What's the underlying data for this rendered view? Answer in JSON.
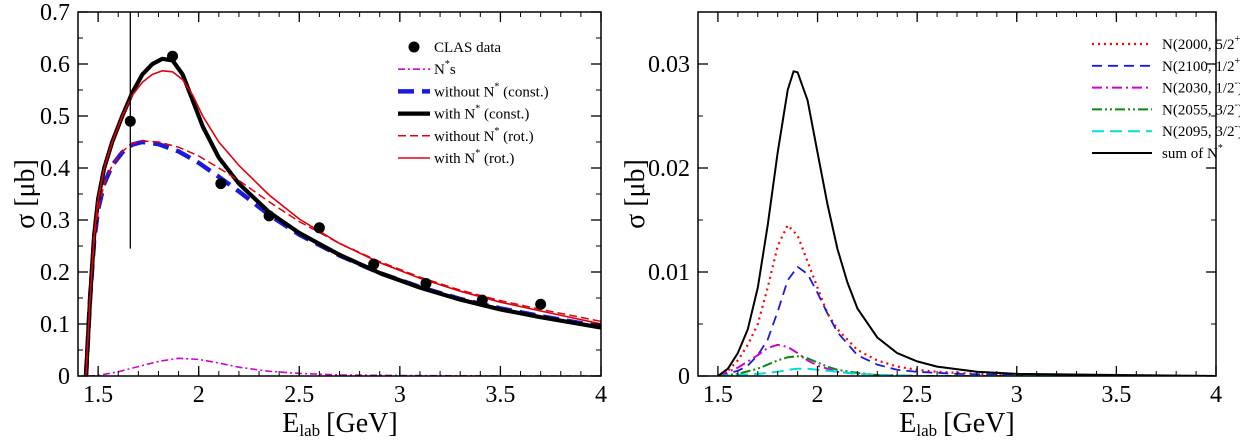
{
  "chart_data": [
    {
      "type": "line",
      "title": "",
      "xlabel": "E",
      "xlabel_sub": "lab",
      "xlabel_unit": "[GeV]",
      "ylabel": "σ [μb]",
      "xlim": [
        1.4,
        4.0
      ],
      "ylim": [
        0,
        0.7
      ],
      "xticks": [
        1.5,
        2,
        2.5,
        3,
        3.5,
        4
      ],
      "xtick_labels": [
        "1.5",
        "2",
        "2.5",
        "3",
        "3.5",
        "4"
      ],
      "yticks": [
        0,
        0.1,
        0.2,
        0.3,
        0.4,
        0.5,
        0.6,
        0.7
      ],
      "ytick_labels": [
        "0",
        "0.1",
        "0.2",
        "0.3",
        "0.4",
        "0.5",
        "0.6",
        "0.7"
      ],
      "legend_position": "top-right",
      "vertical_marker_x": 1.66,
      "vertical_marker_range": [
        0.245,
        0.7
      ],
      "scatter": {
        "name": "CLAS data",
        "color": "#000000",
        "x": [
          1.66,
          1.87,
          2.11,
          2.35,
          2.6,
          2.87,
          3.13,
          3.41,
          3.7
        ],
        "y": [
          0.49,
          0.615,
          0.37,
          0.308,
          0.285,
          0.215,
          0.178,
          0.146,
          0.138
        ]
      },
      "series": [
        {
          "name": "N",
          "name_sup": "*",
          "name_tail": "s",
          "color": "#d000d0",
          "width": 1.6,
          "dash": "7,3,2,3",
          "x": [
            1.45,
            1.5,
            1.6,
            1.7,
            1.8,
            1.9,
            2.0,
            2.1,
            2.2,
            2.35,
            2.5,
            2.7,
            3.0,
            3.5,
            4.0
          ],
          "y": [
            0.0,
            0.001,
            0.008,
            0.018,
            0.028,
            0.034,
            0.032,
            0.025,
            0.017,
            0.009,
            0.005,
            0.002,
            0.001,
            0.0,
            0.0
          ]
        },
        {
          "name": "without N",
          "name_sup": "*",
          "name_tail": " (const.)",
          "color": "#1a1adf",
          "width": 4.5,
          "dash": "16,8",
          "x": [
            1.44,
            1.46,
            1.48,
            1.5,
            1.53,
            1.57,
            1.62,
            1.67,
            1.72,
            1.8,
            1.9,
            2.0,
            2.1,
            2.2,
            2.35,
            2.5,
            2.7,
            2.9,
            3.1,
            3.3,
            3.5,
            3.7,
            4.0
          ],
          "y": [
            0.0,
            0.15,
            0.26,
            0.32,
            0.37,
            0.405,
            0.43,
            0.445,
            0.45,
            0.446,
            0.432,
            0.41,
            0.383,
            0.355,
            0.31,
            0.272,
            0.232,
            0.198,
            0.171,
            0.148,
            0.13,
            0.115,
            0.095
          ]
        },
        {
          "name": "with N",
          "name_sup": "*",
          "name_tail": " (const.)",
          "color": "#000000",
          "width": 4.2,
          "dash": "",
          "x": [
            1.44,
            1.46,
            1.48,
            1.5,
            1.53,
            1.57,
            1.62,
            1.67,
            1.72,
            1.77,
            1.82,
            1.87,
            1.92,
            1.97,
            2.02,
            2.1,
            2.2,
            2.35,
            2.5,
            2.7,
            2.9,
            3.1,
            3.3,
            3.5,
            3.7,
            4.0
          ],
          "y": [
            0.0,
            0.15,
            0.27,
            0.34,
            0.4,
            0.45,
            0.5,
            0.545,
            0.58,
            0.6,
            0.61,
            0.607,
            0.58,
            0.53,
            0.48,
            0.42,
            0.37,
            0.315,
            0.275,
            0.233,
            0.198,
            0.17,
            0.147,
            0.128,
            0.113,
            0.093
          ]
        },
        {
          "name": "without N",
          "name_sup": "*",
          "name_tail": " (rot.)",
          "color": "#e0000b",
          "width": 1.5,
          "dash": "8,4",
          "x": [
            1.44,
            1.46,
            1.48,
            1.5,
            1.53,
            1.57,
            1.62,
            1.67,
            1.72,
            1.8,
            1.9,
            2.0,
            2.1,
            2.2,
            2.35,
            2.5,
            2.7,
            2.9,
            3.1,
            3.3,
            3.5,
            3.7,
            4.0
          ],
          "y": [
            0.0,
            0.15,
            0.26,
            0.32,
            0.37,
            0.405,
            0.432,
            0.447,
            0.452,
            0.45,
            0.44,
            0.423,
            0.4,
            0.376,
            0.335,
            0.297,
            0.255,
            0.22,
            0.19,
            0.165,
            0.145,
            0.128,
            0.105
          ]
        },
        {
          "name": "with N",
          "name_sup": "*",
          "name_tail": " (rot.)",
          "color": "#e0000b",
          "width": 1.6,
          "dash": "",
          "x": [
            1.44,
            1.46,
            1.48,
            1.5,
            1.53,
            1.57,
            1.62,
            1.67,
            1.72,
            1.77,
            1.82,
            1.87,
            1.92,
            1.97,
            2.02,
            2.1,
            2.2,
            2.35,
            2.5,
            2.7,
            2.9,
            3.1,
            3.3,
            3.5,
            3.7,
            4.0
          ],
          "y": [
            0.0,
            0.15,
            0.27,
            0.34,
            0.4,
            0.45,
            0.5,
            0.54,
            0.565,
            0.58,
            0.587,
            0.585,
            0.57,
            0.54,
            0.5,
            0.45,
            0.405,
            0.348,
            0.302,
            0.255,
            0.218,
            0.188,
            0.163,
            0.142,
            0.125,
            0.1
          ]
        }
      ]
    },
    {
      "type": "line",
      "title": "",
      "xlabel": "E",
      "xlabel_sub": "lab",
      "xlabel_unit": "[GeV]",
      "ylabel": "σ [μb]",
      "xlim": [
        1.4,
        4.0
      ],
      "ylim": [
        0,
        0.035
      ],
      "xticks": [
        1.5,
        2,
        2.5,
        3,
        3.5,
        4
      ],
      "xtick_labels": [
        "1.5",
        "2",
        "2.5",
        "3",
        "3.5",
        "4"
      ],
      "yticks": [
        0,
        0.01,
        0.02,
        0.03
      ],
      "ytick_labels": [
        "0",
        "0.01",
        "0.02",
        "0.03"
      ],
      "legend_position": "top-right",
      "series": [
        {
          "name": "N(2000, 5/2",
          "name_sup": "+",
          "name_tail": ")",
          "color": "#ff0000",
          "width": 2.2,
          "dash": "2,4",
          "x": [
            1.5,
            1.55,
            1.6,
            1.65,
            1.7,
            1.75,
            1.8,
            1.85,
            1.9,
            1.95,
            2.0,
            2.05,
            2.1,
            2.2,
            2.3,
            2.4,
            2.5,
            2.6,
            2.8,
            3.0,
            3.5,
            4.0
          ],
          "y": [
            0.0,
            0.0005,
            0.0015,
            0.003,
            0.005,
            0.0085,
            0.0125,
            0.0145,
            0.0135,
            0.011,
            0.0085,
            0.006,
            0.0045,
            0.0025,
            0.0015,
            0.0009,
            0.0006,
            0.0004,
            0.0002,
            0.0001,
            0.0,
            0.0
          ]
        },
        {
          "name": "N(2100, 1/2",
          "name_sup": "+",
          "name_tail": ")",
          "color": "#1a1adf",
          "width": 1.8,
          "dash": "10,6",
          "x": [
            1.5,
            1.6,
            1.65,
            1.7,
            1.75,
            1.8,
            1.85,
            1.9,
            1.95,
            2.0,
            2.05,
            2.1,
            2.2,
            2.3,
            2.4,
            2.5,
            2.7,
            3.0,
            3.5,
            4.0
          ],
          "y": [
            0.0,
            0.0005,
            0.001,
            0.002,
            0.0035,
            0.0062,
            0.0092,
            0.0105,
            0.0098,
            0.008,
            0.006,
            0.0042,
            0.002,
            0.0011,
            0.0006,
            0.0004,
            0.0002,
            0.0001,
            0.0,
            0.0
          ]
        },
        {
          "name": "N(2030, 1/2",
          "name_sup": "-",
          "name_tail": ")",
          "color": "#d000d0",
          "width": 2.0,
          "dash": "10,4,2,4",
          "x": [
            1.5,
            1.6,
            1.7,
            1.75,
            1.8,
            1.85,
            1.9,
            1.95,
            2.0,
            2.1,
            2.2,
            2.3,
            2.5,
            3.0,
            4.0
          ],
          "y": [
            0.0,
            0.0008,
            0.002,
            0.0027,
            0.003,
            0.0028,
            0.0022,
            0.0015,
            0.001,
            0.0004,
            0.0002,
            0.0001,
            0.0,
            0.0,
            0.0
          ]
        },
        {
          "name": "N(2055, 3/2",
          "name_sup": "-",
          "name_tail": ")",
          "color": "#0a8a0a",
          "width": 2.0,
          "dash": "10,3,2,3,2,3",
          "x": [
            1.5,
            1.6,
            1.7,
            1.75,
            1.8,
            1.85,
            1.9,
            1.95,
            2.0,
            2.05,
            2.1,
            2.2,
            2.3,
            2.5,
            3.0,
            4.0
          ],
          "y": [
            0.0,
            0.0002,
            0.0007,
            0.0011,
            0.0015,
            0.0018,
            0.0019,
            0.0017,
            0.0013,
            0.0009,
            0.0006,
            0.0003,
            0.0001,
            0.0,
            0.0,
            0.0
          ]
        },
        {
          "name": "N(2095, 3/2",
          "name_sup": "-",
          "name_tail": ")",
          "color": "#00dede",
          "width": 2.0,
          "dash": "12,6",
          "x": [
            1.5,
            1.7,
            1.8,
            1.85,
            1.9,
            1.95,
            2.0,
            2.05,
            2.1,
            2.2,
            2.3,
            2.5,
            3.0,
            4.0
          ],
          "y": [
            0.0,
            0.0002,
            0.0004,
            0.0006,
            0.0007,
            0.0007,
            0.0006,
            0.0005,
            0.0004,
            0.0002,
            0.0001,
            0.0,
            0.0,
            0.0
          ]
        },
        {
          "name": "sum of N",
          "name_sup": "*",
          "name_tail": "",
          "color": "#000000",
          "width": 2.0,
          "dash": "",
          "x": [
            1.5,
            1.55,
            1.6,
            1.65,
            1.7,
            1.75,
            1.8,
            1.85,
            1.88,
            1.9,
            1.95,
            2.0,
            2.05,
            2.1,
            2.15,
            2.2,
            2.3,
            2.4,
            2.5,
            2.6,
            2.8,
            3.0,
            3.5,
            4.0
          ],
          "y": [
            0.0,
            0.0007,
            0.0022,
            0.0045,
            0.0085,
            0.0145,
            0.0215,
            0.0275,
            0.0293,
            0.0292,
            0.0265,
            0.0215,
            0.0165,
            0.0122,
            0.009,
            0.0065,
            0.0037,
            0.0022,
            0.0014,
            0.0009,
            0.0004,
            0.0002,
            0.0001,
            0.0
          ]
        }
      ]
    }
  ]
}
